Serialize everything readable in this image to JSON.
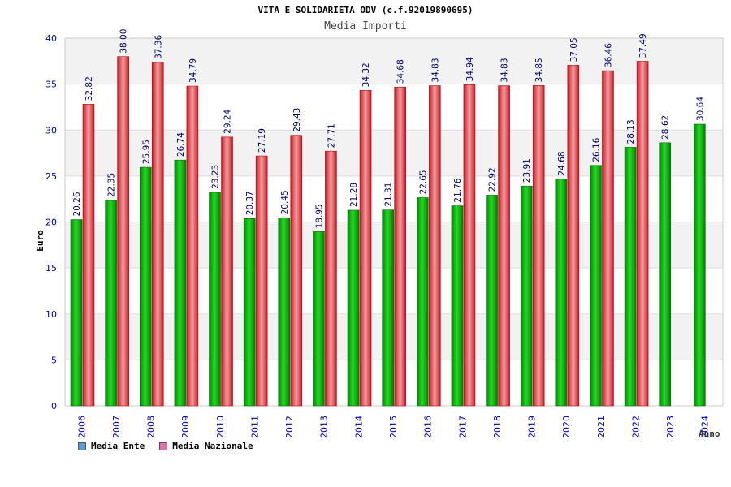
{
  "chart_data": {
    "type": "bar",
    "title": "VITA E SOLIDARIETA ODV (c.f.92019890695)",
    "subtitle": "Media Importi",
    "xlabel": "Anno",
    "ylabel": "Euro",
    "ylim": [
      0,
      40
    ],
    "yticks": [
      0,
      5,
      10,
      15,
      20,
      25,
      30,
      35,
      40
    ],
    "categories": [
      "2006",
      "2007",
      "2008",
      "2009",
      "2010",
      "2011",
      "2012",
      "2013",
      "2014",
      "2015",
      "2016",
      "2017",
      "2018",
      "2019",
      "2020",
      "2021",
      "2022",
      "2023",
      "2024"
    ],
    "series": [
      {
        "name": "Media Ente",
        "color": "#1fbf1f",
        "legend_color": "#5b9bd5",
        "values": [
          20.26,
          22.35,
          25.95,
          26.74,
          23.23,
          20.37,
          20.45,
          18.95,
          21.28,
          21.31,
          22.65,
          21.76,
          22.92,
          23.91,
          24.68,
          26.16,
          28.13,
          28.62,
          30.64
        ],
        "labels": [
          "20.26",
          "22.35",
          "25.95",
          "26.74",
          "23.23",
          "20.37",
          "20.45",
          "18.95",
          "21.28",
          "21.31",
          "22.65",
          "21.76",
          "22.92",
          "23.91",
          "24.68",
          "26.16",
          "28.13",
          "28.62",
          "30.64"
        ]
      },
      {
        "name": "Media Nazionale",
        "color": "#e8202a",
        "legend_color": "#e36fa8",
        "values": [
          32.82,
          38.0,
          37.36,
          34.79,
          29.24,
          27.19,
          29.43,
          27.71,
          34.32,
          34.68,
          34.83,
          34.94,
          34.83,
          34.85,
          37.05,
          36.46,
          37.49,
          null,
          null
        ],
        "labels": [
          "32.82",
          "38.00",
          "37.36",
          "34.79",
          "29.24",
          "27.19",
          "29.43",
          "27.71",
          "34.32",
          "34.68",
          "34.83",
          "34.94",
          "34.83",
          "34.85",
          "37.05",
          "36.46",
          "37.49",
          "",
          ""
        ]
      }
    ],
    "grid": true,
    "legend_position": "bottom-left"
  }
}
